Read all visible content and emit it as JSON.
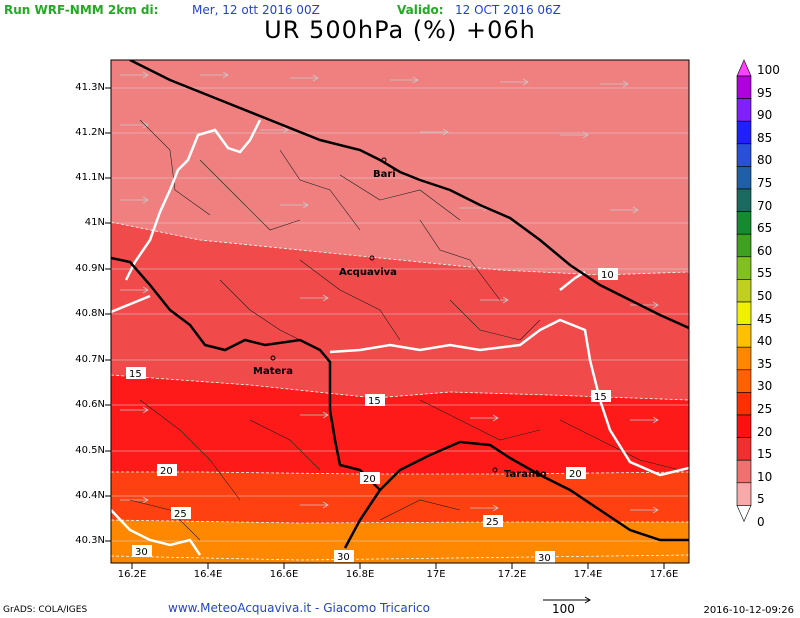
{
  "header": {
    "run_label": "Run WRF-NMM 2km di:",
    "run_date": "Mer, 12 ott 2016 00Z",
    "valid_label": "Valido:",
    "valid_date": "12 OCT 2016 06Z"
  },
  "title": "UR 500hPa (%) +06h",
  "axes": {
    "y_ticks": [
      "41.3N",
      "41.2N",
      "41.1N",
      "41N",
      "40.9N",
      "40.8N",
      "40.7N",
      "40.6N",
      "40.5N",
      "40.4N",
      "40.3N"
    ],
    "x_ticks": [
      "16.2E",
      "16.4E",
      "16.6E",
      "16.8E",
      "17E",
      "17.2E",
      "17.4E",
      "17.6E"
    ]
  },
  "colorbar": {
    "labels": [
      "100",
      "95",
      "90",
      "85",
      "80",
      "75",
      "70",
      "65",
      "60",
      "55",
      "50",
      "45",
      "40",
      "35",
      "30",
      "25",
      "20",
      "15",
      "10",
      "5",
      "0"
    ],
    "colors": [
      "#ff40ff",
      "#b000e0",
      "#8020ff",
      "#2020ff",
      "#2a4fd8",
      "#1f5fa8",
      "#1a6a60",
      "#168a30",
      "#40a020",
      "#80c020",
      "#c0d020",
      "#f0f000",
      "#ffc000",
      "#ff8800",
      "#ff6000",
      "#ff3000",
      "#ff1010",
      "#f03030",
      "#f07070",
      "#f8aaaa",
      "#ffffff"
    ]
  },
  "contours": {
    "labels": [
      "10",
      "15",
      "15",
      "15",
      "20",
      "20",
      "20",
      "25",
      "25",
      "30",
      "30",
      "30"
    ]
  },
  "places": {
    "bari": "Bari",
    "acquaviva": "Acquaviva",
    "matera": "Matera",
    "taranto": "Taranto"
  },
  "footer": {
    "grads": "GrADS: COLA/IGES",
    "credits": "www.MeteoAcquaviva.it - Giacomo Tricarico",
    "vector_ref": "100",
    "timestamp": "2016-10-12-09:26"
  }
}
